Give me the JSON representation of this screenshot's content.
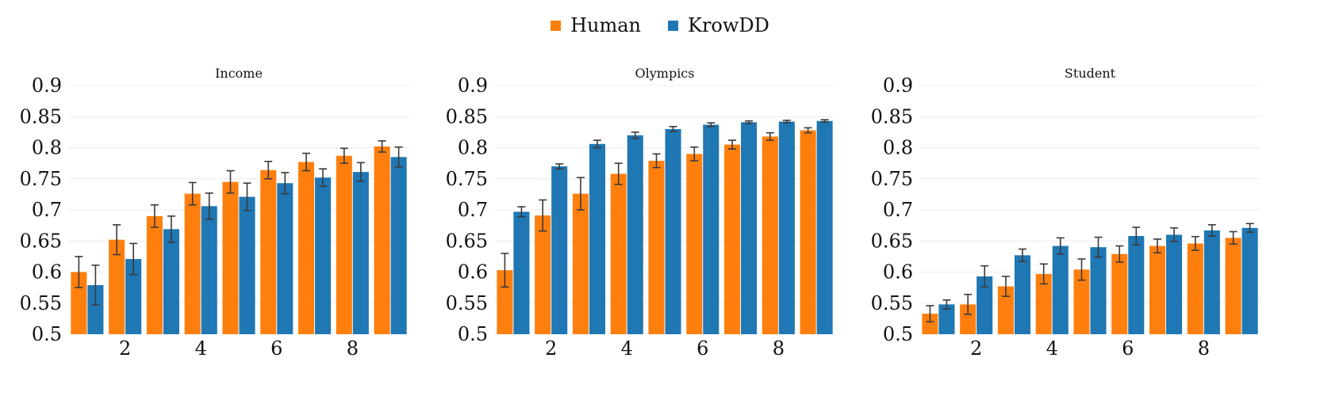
{
  "legend": {
    "items": [
      {
        "label": "Human",
        "color": "#ff7f0e"
      },
      {
        "label": "KrowDD",
        "color": "#1f77b4"
      }
    ]
  },
  "chart_data": [
    {
      "type": "bar",
      "title": "Income",
      "x": [
        1,
        2,
        3,
        4,
        5,
        6,
        7,
        8,
        9
      ],
      "xticks": [
        "2",
        "4",
        "6",
        "8"
      ],
      "yticks": [
        "0.5",
        "0.55",
        "0.6",
        "0.65",
        "0.7",
        "0.75",
        "0.8",
        "0.85",
        "0.9"
      ],
      "ylim": [
        0.5,
        0.9
      ],
      "grid": true,
      "series": [
        {
          "name": "Human",
          "color": "#ff7f0e",
          "values": [
            0.6,
            0.652,
            0.69,
            0.726,
            0.745,
            0.764,
            0.777,
            0.787,
            0.802
          ],
          "errors": [
            0.025,
            0.024,
            0.018,
            0.018,
            0.018,
            0.014,
            0.014,
            0.012,
            0.009
          ]
        },
        {
          "name": "KrowDD",
          "color": "#1f77b4",
          "values": [
            0.579,
            0.621,
            0.669,
            0.706,
            0.721,
            0.743,
            0.752,
            0.761,
            0.785
          ],
          "errors": [
            0.032,
            0.025,
            0.021,
            0.021,
            0.022,
            0.017,
            0.014,
            0.015,
            0.016
          ]
        }
      ]
    },
    {
      "type": "bar",
      "title": "Olympics",
      "x": [
        1,
        2,
        3,
        4,
        5,
        6,
        7,
        8,
        9
      ],
      "xticks": [
        "2",
        "4",
        "6",
        "8"
      ],
      "yticks": [
        "0.5",
        "0.55",
        "0.6",
        "0.65",
        "0.7",
        "0.75",
        "0.8",
        "0.85",
        "0.9"
      ],
      "ylim": [
        0.5,
        0.9
      ],
      "grid": true,
      "series": [
        {
          "name": "Human",
          "color": "#ff7f0e",
          "values": [
            0.603,
            0.691,
            0.726,
            0.758,
            0.779,
            0.79,
            0.805,
            0.818,
            0.828
          ],
          "errors": [
            0.027,
            0.025,
            0.026,
            0.017,
            0.011,
            0.011,
            0.007,
            0.006,
            0.004
          ]
        },
        {
          "name": "KrowDD",
          "color": "#1f77b4",
          "values": [
            0.697,
            0.77,
            0.806,
            0.82,
            0.83,
            0.837,
            0.841,
            0.842,
            0.843
          ],
          "errors": [
            0.008,
            0.004,
            0.006,
            0.005,
            0.004,
            0.003,
            0.002,
            0.002,
            0.002
          ]
        }
      ]
    },
    {
      "type": "bar",
      "title": "Student",
      "x": [
        1,
        2,
        3,
        4,
        5,
        6,
        7,
        8,
        9
      ],
      "xticks": [
        "2",
        "4",
        "6",
        "8"
      ],
      "yticks": [
        "0.5",
        "0.55",
        "0.6",
        "0.65",
        "0.7",
        "0.75",
        "0.8",
        "0.85",
        "0.9"
      ],
      "ylim": [
        0.5,
        0.9
      ],
      "grid": true,
      "series": [
        {
          "name": "Human",
          "color": "#ff7f0e",
          "values": [
            0.533,
            0.548,
            0.577,
            0.597,
            0.604,
            0.629,
            0.642,
            0.646,
            0.655
          ],
          "errors": [
            0.013,
            0.016,
            0.016,
            0.016,
            0.017,
            0.013,
            0.011,
            0.011,
            0.01
          ]
        },
        {
          "name": "KrowDD",
          "color": "#1f77b4",
          "values": [
            0.548,
            0.593,
            0.627,
            0.642,
            0.64,
            0.658,
            0.66,
            0.667,
            0.671
          ],
          "errors": [
            0.007,
            0.017,
            0.01,
            0.013,
            0.016,
            0.014,
            0.011,
            0.009,
            0.007
          ]
        }
      ]
    }
  ]
}
